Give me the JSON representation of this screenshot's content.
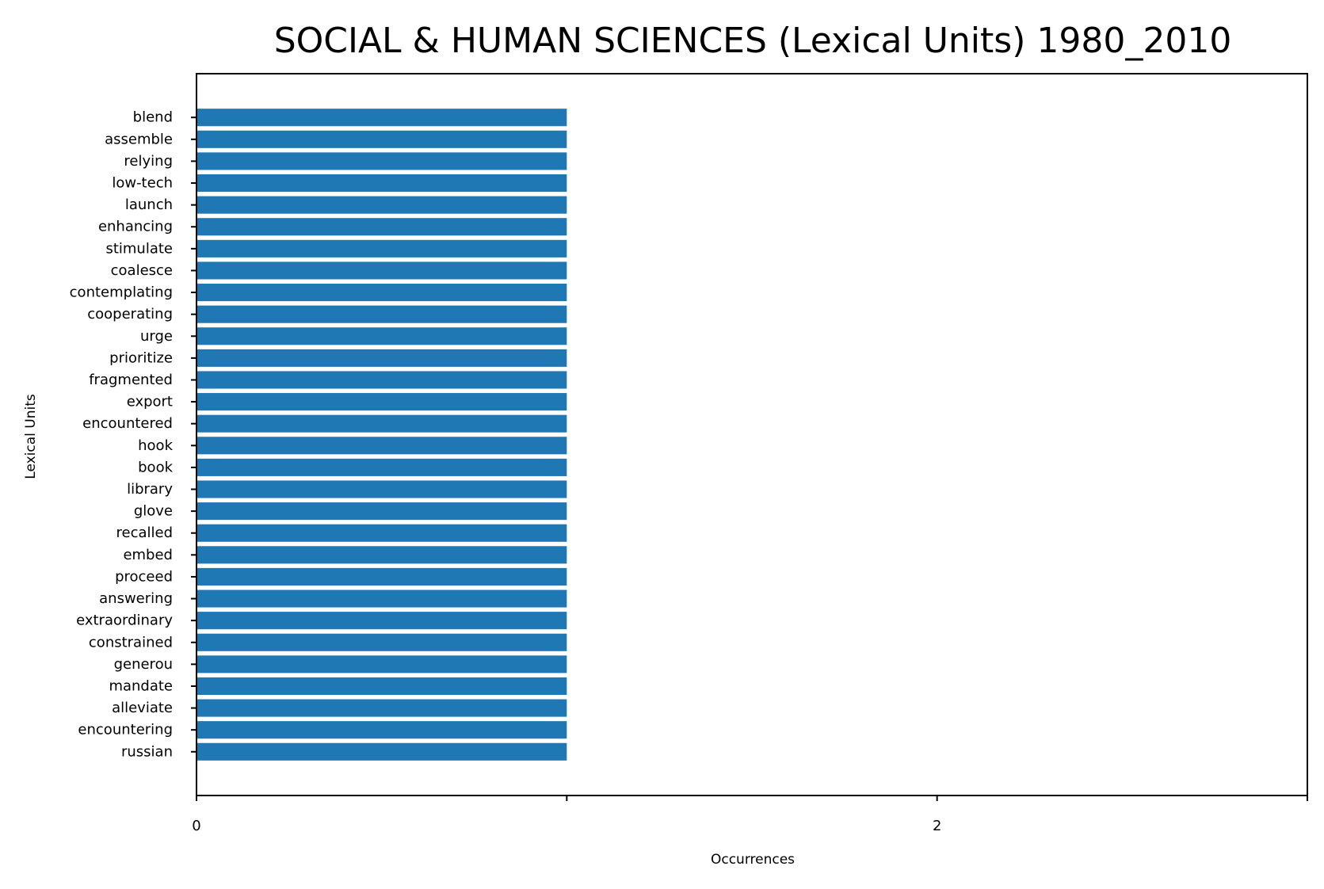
{
  "chart_data": {
    "type": "bar",
    "orientation": "horizontal",
    "title": "SOCIAL & HUMAN SCIENCES (Lexical Units) 1980_2010",
    "xlabel": "Occurrences",
    "ylabel": "Lexical Units",
    "categories": [
      "blend",
      "assemble",
      "relying",
      "low-tech",
      "launch",
      "enhancing",
      "stimulate",
      "coalesce",
      "contemplating",
      "cooperating",
      "urge",
      "prioritize",
      "fragmented",
      "export",
      "encountered",
      "hook",
      "book",
      "library",
      "glove",
      "recalled",
      "embed",
      "proceed",
      "answering",
      "extraordinary",
      "constrained",
      "generou",
      "mandate",
      "alleviate",
      "encountering",
      "russian"
    ],
    "values": [
      1,
      1,
      1,
      1,
      1,
      1,
      1,
      1,
      1,
      1,
      1,
      1,
      1,
      1,
      1,
      1,
      1,
      1,
      1,
      1,
      1,
      1,
      1,
      1,
      1,
      1,
      1,
      1,
      1,
      1
    ],
    "xlim": [
      0,
      3
    ],
    "xticks": [
      0,
      1,
      2,
      3
    ],
    "xtick_labels": [
      "0",
      "",
      "2",
      ""
    ],
    "grid": false,
    "bar_color": "#1f77b4"
  }
}
